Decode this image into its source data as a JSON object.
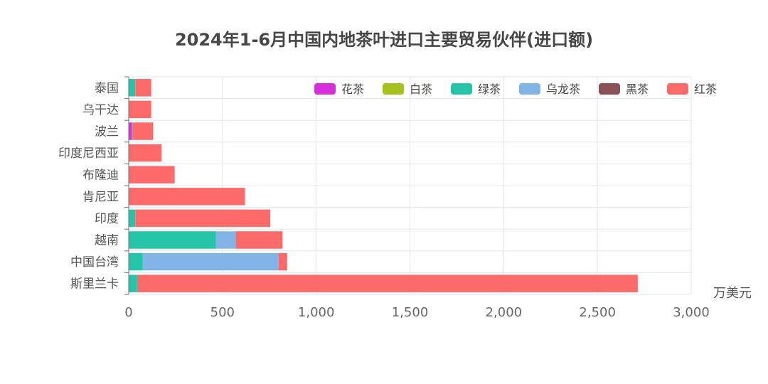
{
  "chart_data": {
    "type": "bar",
    "orientation": "horizontal",
    "stacked": true,
    "title": "2024年1-6月中国内地茶叶进口主要贸易伙伴(进口额)",
    "xlabel": "万美元",
    "ylabel": "",
    "xlim": [
      0,
      3000
    ],
    "xticks": [
      "0",
      "500",
      "1,000",
      "1,500",
      "2,000",
      "2,500",
      "3,000"
    ],
    "grid": true,
    "legend_position": "top-right",
    "categories": [
      "泰国",
      "乌干达",
      "波兰",
      "印度尼西亚",
      "布隆迪",
      "肯尼亚",
      "印度",
      "越南",
      "中国台湾",
      "斯里兰卡"
    ],
    "series": [
      {
        "name": "花茶",
        "color": "#d62fdc",
        "values": [
          0,
          0,
          15,
          0,
          0,
          0,
          0,
          0,
          0,
          0
        ]
      },
      {
        "name": "白茶",
        "color": "#a8c01e",
        "values": [
          0,
          0,
          0,
          0,
          0,
          0,
          0,
          0,
          0,
          0
        ]
      },
      {
        "name": "绿茶",
        "color": "#26c4a8",
        "values": [
          35,
          0,
          5,
          0,
          0,
          0,
          35,
          465,
          75,
          45
        ]
      },
      {
        "name": "乌龙茶",
        "color": "#82b4e8",
        "values": [
          0,
          0,
          0,
          0,
          0,
          0,
          0,
          105,
          725,
          0
        ]
      },
      {
        "name": "黑茶",
        "color": "#8a5158",
        "values": [
          0,
          0,
          0,
          0,
          0,
          0,
          0,
          0,
          0,
          0
        ]
      },
      {
        "name": "红茶",
        "color": "#fd6a6a",
        "values": [
          85,
          120,
          110,
          175,
          245,
          620,
          720,
          250,
          45,
          2670
        ]
      }
    ]
  }
}
